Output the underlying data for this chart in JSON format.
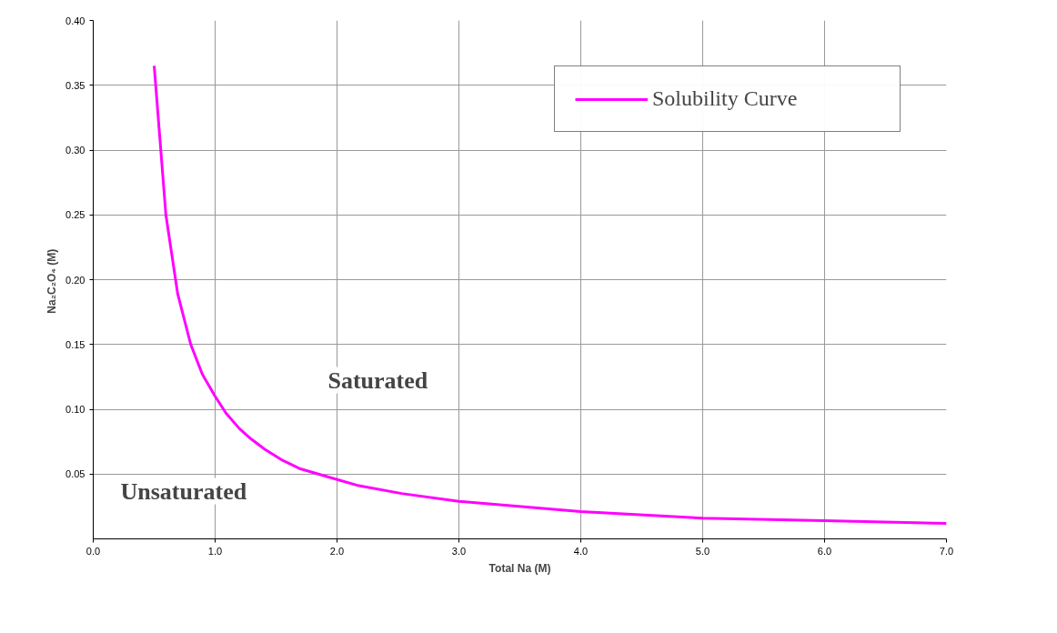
{
  "chart_data": {
    "type": "line",
    "xlabel": "Total Na (M)",
    "ylabel": "Na₂C₂O₄  (M)",
    "series": [
      {
        "name": "Solubility Curve",
        "color": "#ff00ff",
        "x": [
          0.5,
          0.596,
          0.693,
          0.8,
          0.895,
          1.0,
          1.089,
          1.2,
          1.296,
          1.41,
          1.545,
          1.7,
          1.994,
          2.18,
          2.53,
          3.0,
          4.0,
          5.0,
          6.0,
          7.0
        ],
        "values": [
          0.365,
          0.25,
          0.189,
          0.15,
          0.127,
          0.11,
          0.097,
          0.085,
          0.077,
          0.069,
          0.061,
          0.054,
          0.046,
          0.041,
          0.035,
          0.029,
          0.021,
          0.016,
          0.014,
          0.012
        ]
      }
    ],
    "xlim": [
      0,
      7
    ],
    "ylim": [
      0,
      0.4
    ],
    "xticks": [
      {
        "value": 0,
        "label": "0.0"
      },
      {
        "value": 1,
        "label": "1.0"
      },
      {
        "value": 2,
        "label": "2.0"
      },
      {
        "value": 3,
        "label": "3.0"
      },
      {
        "value": 4,
        "label": "4.0"
      },
      {
        "value": 5,
        "label": "5.0"
      },
      {
        "value": 6,
        "label": "6.0"
      },
      {
        "value": 7,
        "label": "7.0"
      }
    ],
    "yticks": [
      {
        "value": 0.05,
        "label": "0.05"
      },
      {
        "value": 0.1,
        "label": "0.10"
      },
      {
        "value": 0.15,
        "label": "0.15"
      },
      {
        "value": 0.2,
        "label": "0.20"
      },
      {
        "value": 0.25,
        "label": "0.25"
      },
      {
        "value": 0.3,
        "label": "0.30"
      },
      {
        "value": 0.35,
        "label": "0.35"
      },
      {
        "value": 0.4,
        "label": "0.40"
      }
    ],
    "grid": true,
    "legend": "top right",
    "marker": "none",
    "line_style": "solid",
    "annotations": [
      "Saturated",
      "Unsaturated"
    ]
  }
}
